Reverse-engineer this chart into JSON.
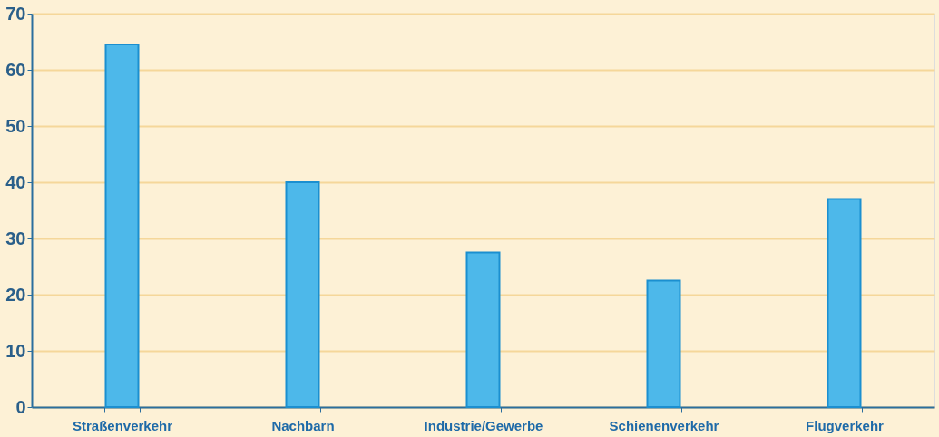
{
  "chart_data": {
    "type": "bar",
    "categories": [
      "Straßenverkehr",
      "Nachbarn",
      "Industrie/Gewerbe",
      "Schienenverkehr",
      "Flugverkehr"
    ],
    "values": [
      64.5,
      40,
      27.5,
      22.5,
      37
    ],
    "color": "#4db8ea",
    "ylim": [
      0,
      70
    ],
    "yticks": [
      0,
      10,
      20,
      30,
      40,
      50,
      60,
      70
    ],
    "grid": "y"
  }
}
